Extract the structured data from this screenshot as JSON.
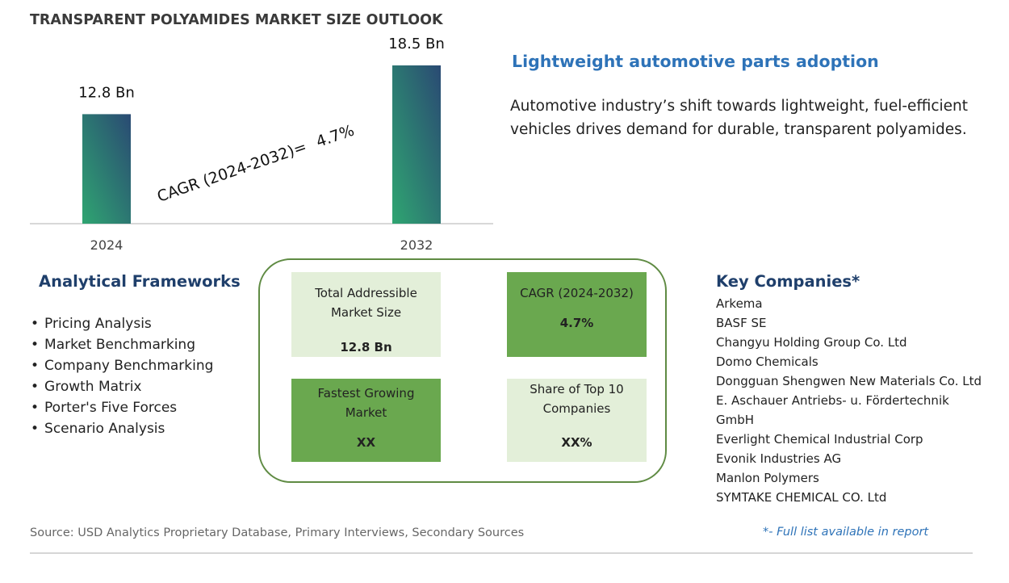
{
  "header": {
    "title": "TRANSPARENT POLYAMIDES MARKET SIZE OUTLOOK"
  },
  "chart_data": {
    "type": "bar",
    "categories": [
      "2024",
      "2032"
    ],
    "values": [
      12.8,
      18.5
    ],
    "data_labels": [
      "12.8 Bn",
      "18.5 Bn"
    ],
    "ylim": [
      0,
      18.5
    ],
    "grid": false,
    "annotation": {
      "label": "CAGR (2024-2032)=",
      "value": "4.7%"
    },
    "colors": {
      "bar_top": "#2a4a73",
      "bar_bottom": "#2fa571",
      "axis": "#cccccc"
    }
  },
  "highlight": {
    "title": "Lightweight automotive parts adoption",
    "description": "Automotive industry’s shift towards lightweight, fuel-efficient vehicles drives demand for durable, transparent polyamides."
  },
  "frameworks": {
    "title": "Analytical Frameworks",
    "items": [
      "Pricing Analysis",
      "Market Benchmarking",
      "Company Benchmarking",
      "Growth Matrix",
      "Porter's Five Forces",
      "Scenario Analysis"
    ]
  },
  "metrics": {
    "tam": {
      "label": "Total Addressible Market Size",
      "value": "12.8 Bn"
    },
    "cagr": {
      "label": "CAGR (2024-2032)",
      "value": "4.7%"
    },
    "fastest": {
      "label": "Fastest Growing Market",
      "value": "XX"
    },
    "share": {
      "label": "Share of Top 10 Companies",
      "value": "XX%"
    }
  },
  "companies": {
    "title": "Key Companies*",
    "items": [
      "Arkema",
      "BASF SE",
      "Changyu Holding Group Co. Ltd",
      "Domo Chemicals",
      "Dongguan Shengwen New Materials Co. Ltd",
      "E. Aschauer Antriebs- u. Fördertechnik",
      "GmbH",
      "Everlight Chemical Industrial Corp",
      "Evonik Industries AG",
      "Manlon Polymers",
      "SYMTAKE CHEMICAL CO. Ltd"
    ]
  },
  "footer": {
    "source": "Source: USD Analytics Proprietary Database, Primary Interviews, Secondary Sources",
    "note": "*- Full list available in report"
  }
}
